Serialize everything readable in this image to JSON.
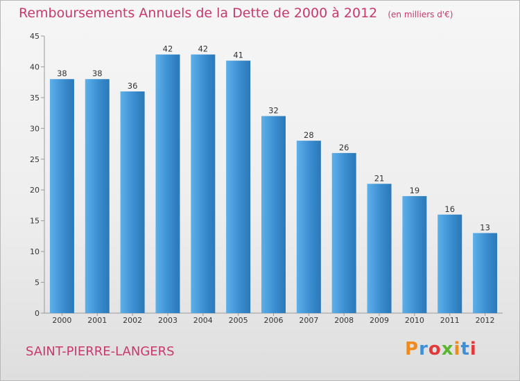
{
  "title": "Remboursements Annuels de la Dette de 2000 à 2012",
  "unit": "(en milliers d'€)",
  "commune": "SAINT-PIERRE-LANGERS",
  "logo": {
    "letters": [
      "P",
      "r",
      "o",
      "x",
      "i",
      "t",
      "i"
    ],
    "colors": [
      "#f08a1c",
      "#3f8fd6",
      "#e23a3a",
      "#5cb531",
      "#f08a1c",
      "#3f8fd6",
      "#e23a3a"
    ]
  },
  "colors": {
    "bar": "#3b8ed0",
    "bar_light": "#5eb0ea",
    "bar_dark": "#2a78b8",
    "title": "#c8386c"
  },
  "chart_data": {
    "type": "bar",
    "title": "Remboursements Annuels de la Dette de 2000 à 2012",
    "categories": [
      "2000",
      "2001",
      "2002",
      "2003",
      "2004",
      "2005",
      "2006",
      "2007",
      "2008",
      "2009",
      "2010",
      "2011",
      "2012"
    ],
    "values": [
      38,
      38,
      36,
      42,
      42,
      41,
      32,
      28,
      26,
      21,
      19,
      16,
      13
    ],
    "ylim": [
      0,
      45
    ],
    "yticks": [
      0,
      5,
      10,
      15,
      20,
      25,
      30,
      35,
      40,
      45
    ],
    "grid": false,
    "xlabel": "",
    "ylabel": ""
  }
}
